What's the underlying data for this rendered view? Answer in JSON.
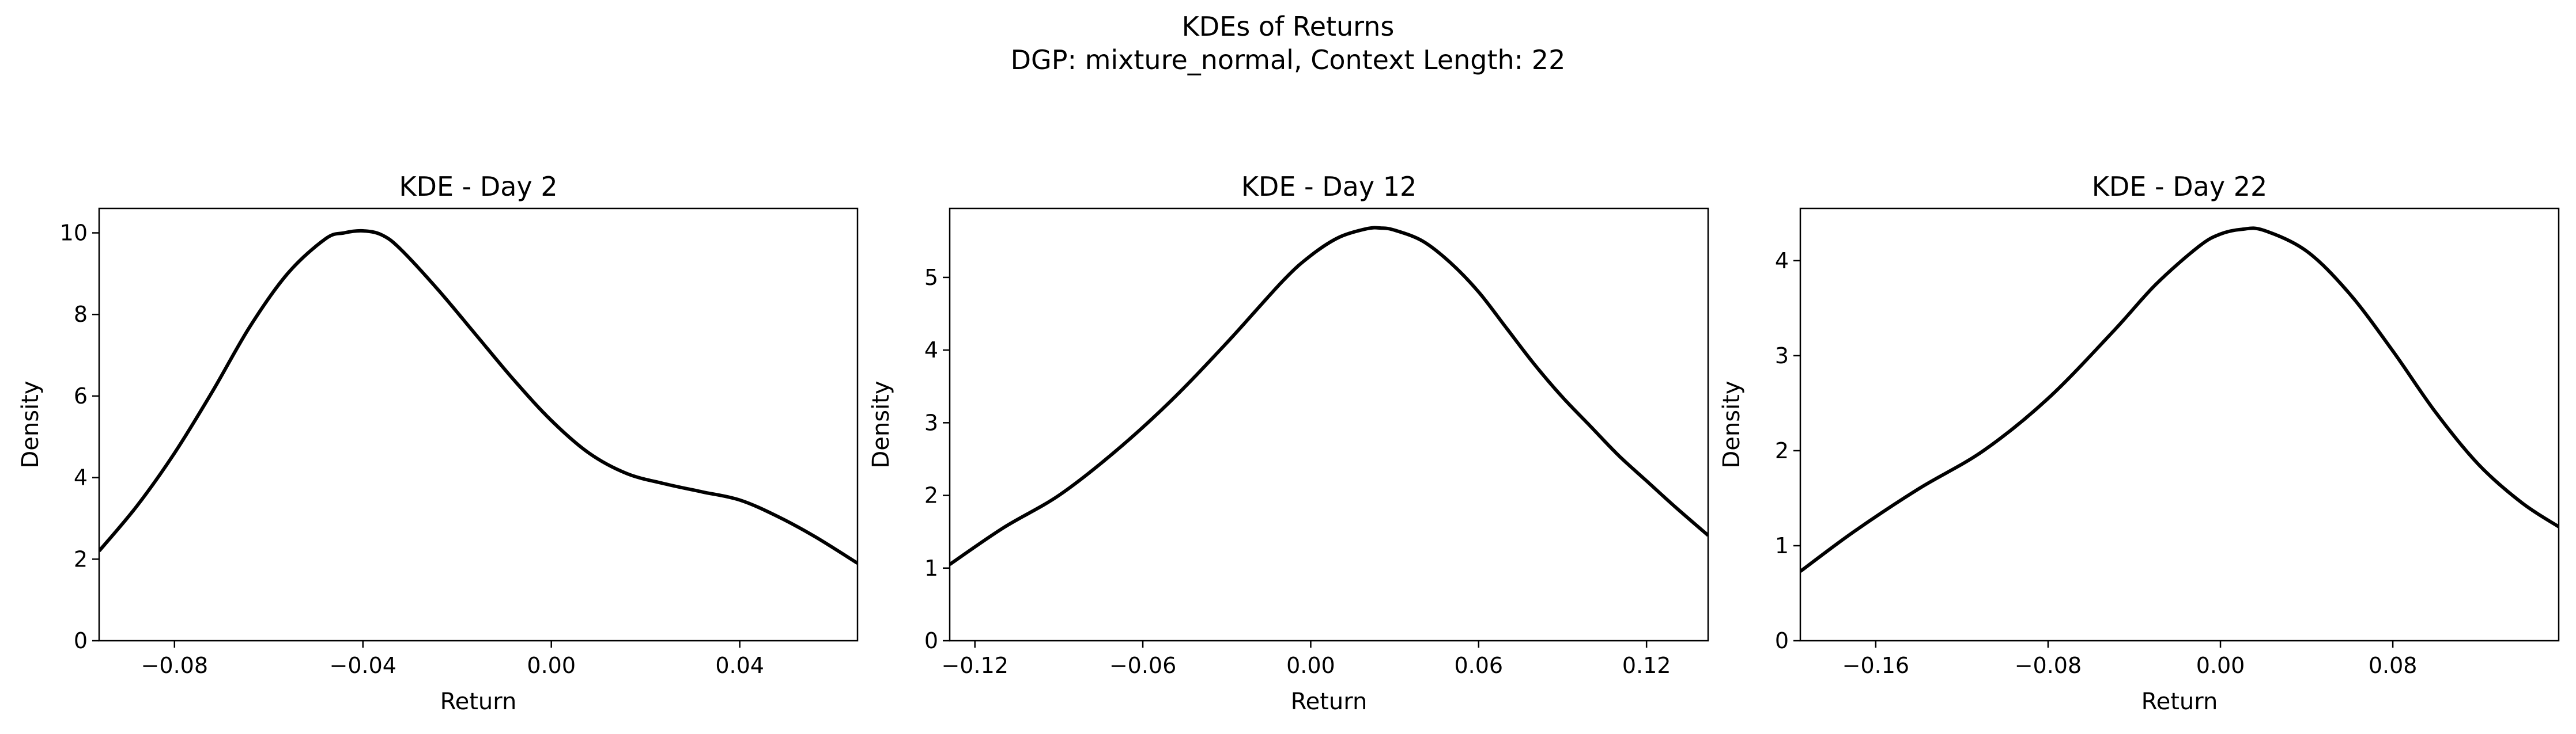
{
  "figure": {
    "title_line1": "KDEs of Returns",
    "title_line2": "DGP: mixture_normal, Context Length: 22"
  },
  "chart_data": [
    {
      "type": "line",
      "title": "KDE - Day 2",
      "xlabel": "Return",
      "ylabel": "Density",
      "xlim": [
        -0.096,
        0.065
      ],
      "ylim": [
        0,
        10.6
      ],
      "xticks": [
        -0.08,
        -0.04,
        0.0,
        0.04
      ],
      "xtick_labels": [
        "−0.08",
        "−0.04",
        "0.00",
        "0.04"
      ],
      "yticks": [
        0,
        2,
        4,
        6,
        8,
        10
      ],
      "ytick_labels": [
        "0",
        "2",
        "4",
        "6",
        "8",
        "10"
      ],
      "grid": false,
      "series": [
        {
          "color": "#000000",
          "x": [
            -0.096,
            -0.088,
            -0.08,
            -0.072,
            -0.064,
            -0.056,
            -0.048,
            -0.044,
            -0.04,
            -0.036,
            -0.032,
            -0.024,
            -0.016,
            -0.008,
            0.0,
            0.008,
            0.016,
            0.024,
            0.032,
            0.04,
            0.048,
            0.056,
            0.065
          ],
          "y": [
            2.2,
            3.3,
            4.6,
            6.1,
            7.7,
            9.0,
            9.85,
            10.0,
            10.05,
            9.95,
            9.6,
            8.6,
            7.5,
            6.4,
            5.4,
            4.6,
            4.1,
            3.85,
            3.65,
            3.45,
            3.05,
            2.55,
            1.9
          ]
        }
      ]
    },
    {
      "type": "line",
      "title": "KDE - Day 12",
      "xlabel": "Return",
      "ylabel": "Density",
      "xlim": [
        -0.129,
        0.142
      ],
      "ylim": [
        0,
        5.95
      ],
      "xticks": [
        -0.12,
        -0.06,
        0.0,
        0.06,
        0.12
      ],
      "xtick_labels": [
        "−0.12",
        "−0.06",
        "0.00",
        "0.06",
        "0.12"
      ],
      "yticks": [
        0,
        1,
        2,
        3,
        4,
        5
      ],
      "ytick_labels": [
        "0",
        "1",
        "2",
        "3",
        "4",
        "5"
      ],
      "grid": false,
      "series": [
        {
          "color": "#000000",
          "x": [
            -0.129,
            -0.11,
            -0.09,
            -0.07,
            -0.05,
            -0.03,
            -0.01,
            0.0,
            0.01,
            0.02,
            0.025,
            0.03,
            0.04,
            0.05,
            0.06,
            0.07,
            0.08,
            0.09,
            0.1,
            0.11,
            0.12,
            0.13,
            0.142
          ],
          "y": [
            1.05,
            1.55,
            2.0,
            2.6,
            3.3,
            4.1,
            4.95,
            5.3,
            5.55,
            5.67,
            5.68,
            5.65,
            5.5,
            5.2,
            4.8,
            4.3,
            3.8,
            3.35,
            2.95,
            2.55,
            2.2,
            1.85,
            1.45
          ]
        }
      ]
    },
    {
      "type": "line",
      "title": "KDE - Day 22",
      "xlabel": "Return",
      "ylabel": "Density",
      "xlim": [
        -0.195,
        0.157
      ],
      "ylim": [
        0,
        4.55
      ],
      "xticks": [
        -0.16,
        -0.08,
        0.0,
        0.08
      ],
      "xtick_labels": [
        "−0.16",
        "−0.08",
        "0.00",
        "0.08"
      ],
      "yticks": [
        0,
        1,
        2,
        3,
        4
      ],
      "ytick_labels": [
        "0",
        "1",
        "2",
        "3",
        "4"
      ],
      "grid": false,
      "series": [
        {
          "color": "#000000",
          "x": [
            -0.195,
            -0.17,
            -0.14,
            -0.11,
            -0.08,
            -0.05,
            -0.03,
            -0.01,
            0.0,
            0.01,
            0.02,
            0.04,
            0.06,
            0.08,
            0.1,
            0.12,
            0.14,
            0.157
          ],
          "y": [
            0.73,
            1.15,
            1.6,
            2.0,
            2.55,
            3.25,
            3.75,
            4.15,
            4.28,
            4.33,
            4.32,
            4.1,
            3.65,
            3.05,
            2.4,
            1.85,
            1.45,
            1.2
          ]
        }
      ]
    }
  ]
}
